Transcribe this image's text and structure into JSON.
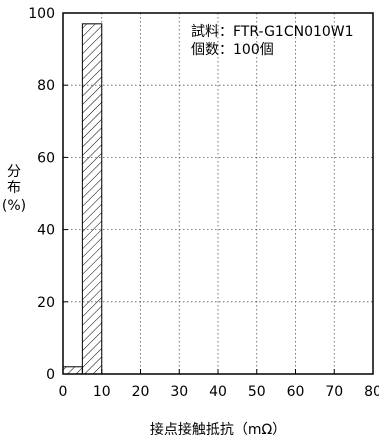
{
  "chart_data": {
    "type": "bar",
    "xlabel": "接点接触抵抗（mΩ）",
    "ylabel_lines": [
      "分",
      "布",
      "(%)"
    ],
    "xlim": [
      0,
      80
    ],
    "ylim": [
      0,
      100
    ],
    "xticks": [
      0,
      10,
      20,
      30,
      40,
      50,
      60,
      70,
      80
    ],
    "yticks": [
      0,
      20,
      40,
      60,
      80,
      100
    ],
    "grid": true,
    "bins": [
      {
        "x_start": 0,
        "x_end": 5,
        "value": 2
      },
      {
        "x_start": 5,
        "x_end": 10,
        "value": 97
      }
    ],
    "annotations": [
      "試料：FTR-G1CN010W1",
      "個数：100個"
    ]
  }
}
